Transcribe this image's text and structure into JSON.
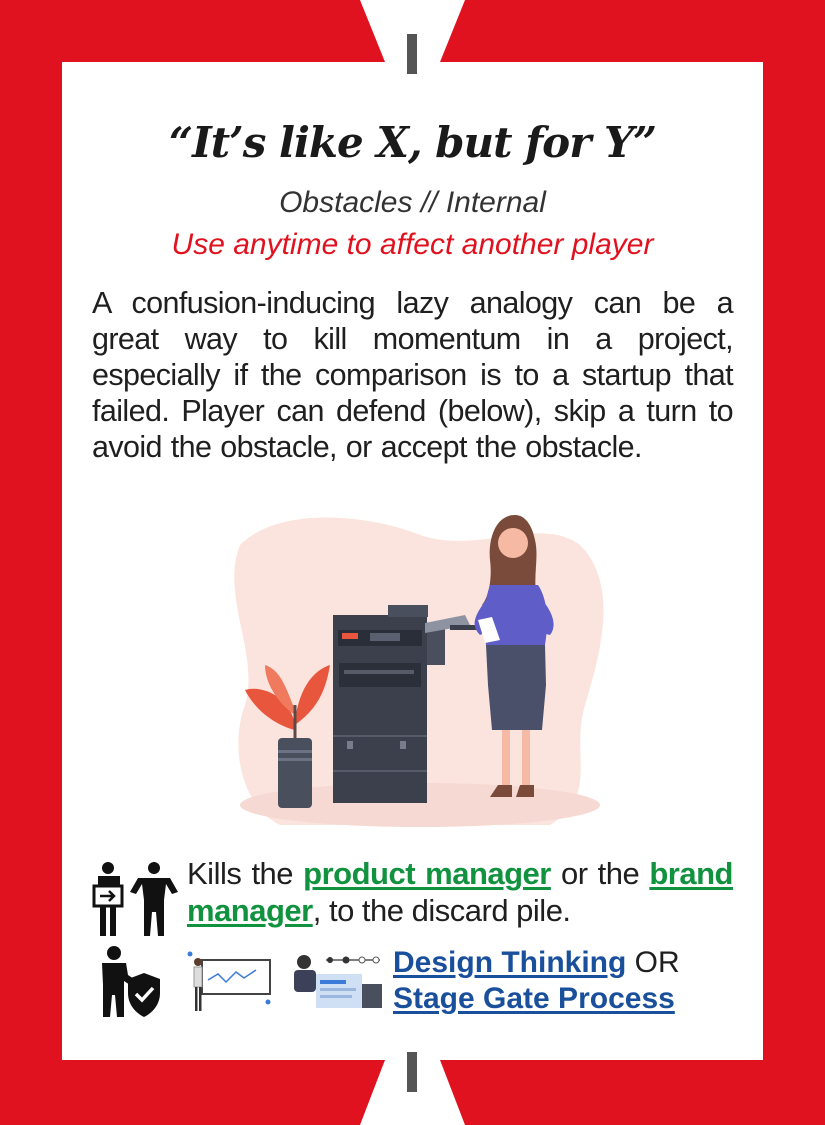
{
  "card": {
    "title": "“It’s like X, but for Y”",
    "category": "Obstacles // Internal",
    "usage": "Use anytime to affect another player",
    "description": "A confusion-inducing lazy analogy can be a great way to kill momentum in a project, especially if the comparison is to a startup that failed. Player can defend (below), skip a turn to avoid the obstacle, or accept the obstacle."
  },
  "effect": {
    "prefix": "Kills the ",
    "role1": "product manager",
    "middle": " or the ",
    "role2": "brand manager",
    "suffix": ", to the discard pile."
  },
  "defense": {
    "option1": "Design Thinking",
    "connector": " OR",
    "option2": "Stage Gate Process"
  },
  "colors": {
    "frame_red": "#e1121f",
    "role_green": "#11923e",
    "link_blue": "#1a4f9c",
    "usage_red": "#e1121f"
  },
  "icons": {
    "effect": "two-people-with-box-icon",
    "defense": "person-with-shield-icon",
    "illustration": "woman-at-copier-illustration",
    "thumb1": "presentation-board-thumbnail",
    "thumb2": "process-flow-thumbnail"
  }
}
